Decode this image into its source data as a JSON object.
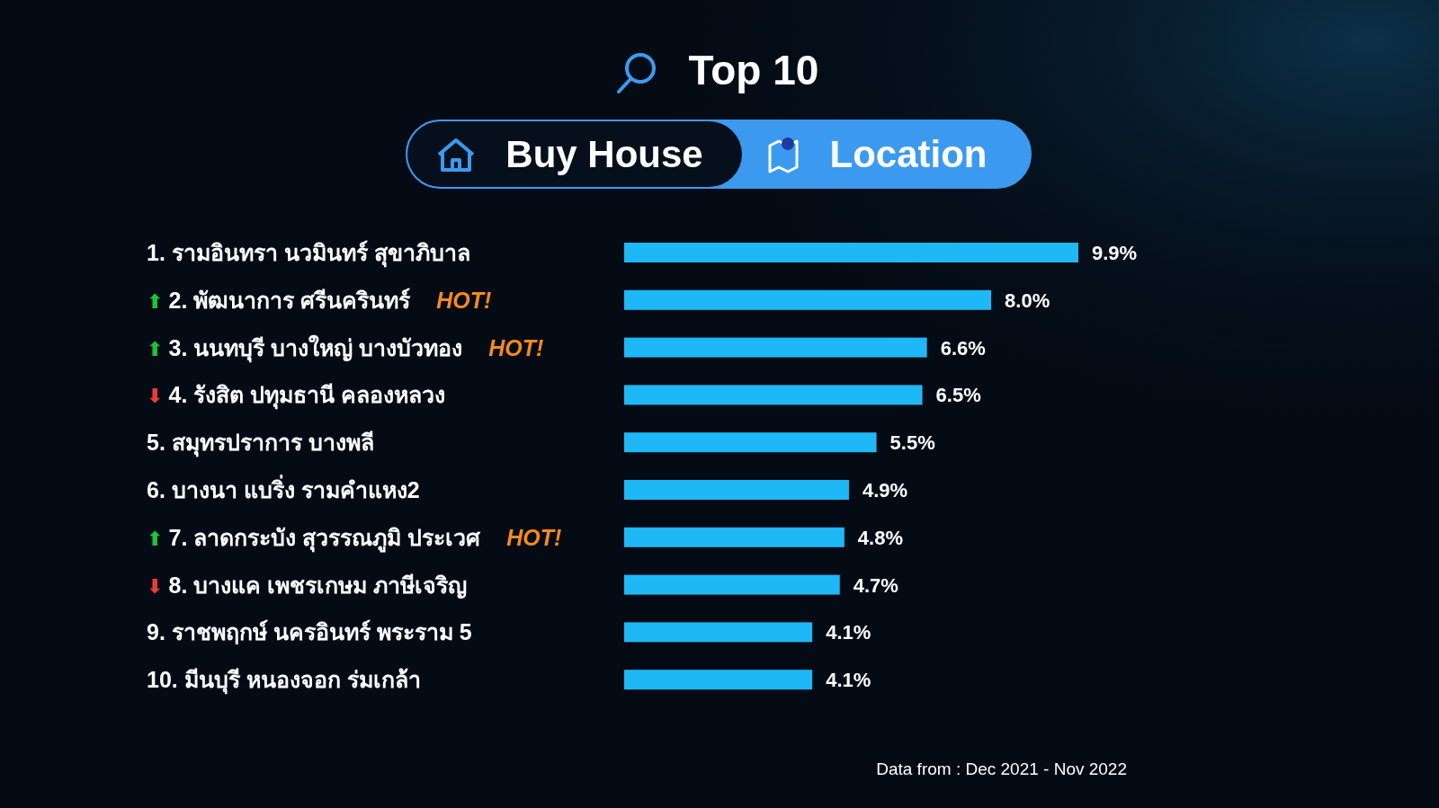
{
  "chart_data": {
    "type": "bar",
    "orientation": "horizontal",
    "title": "Top 10",
    "categories": [
      "1. รามอินทรา นวมินทร์ สุขาภิบาล",
      "⬆ 2. พัฒนาการ ศรีนครินทร์ HOT!",
      "⬆ 3. นนทบุรี บางใหญ่ บางบัวทอง HOT!",
      "⬇ 4. รังสิต ปทุมธานี คลองหลวง",
      "5. สมุทรปราการ บางพลี",
      "6. บางนา แบริ่ง รามคำแหง2",
      "⬆ 7. ลาดกระบัง สุวรรณภูมิ ประเวศ HOT!",
      "⬇ 8. บางแค เพชรเกษม ภาษีเจริญ",
      "9. ราชพฤกษ์ นครอินทร์ พระราม 5",
      "10. มีนบุรี หนองจอก ร่มเกล้า"
    ],
    "values": [
      9.9,
      8.0,
      6.6,
      6.5,
      5.5,
      4.9,
      4.8,
      4.7,
      4.1,
      4.1
    ],
    "value_labels": [
      "9.9%",
      "8.0%",
      "6.6%",
      "6.5%",
      "5.5%",
      "4.9%",
      "4.8%",
      "4.7%",
      "4.1%",
      "4.1%"
    ],
    "color": "#1fb8f6",
    "annotations": [
      "Buy House",
      "Location",
      "Data from : Dec 2021 - Nov 2022"
    ]
  }
}
